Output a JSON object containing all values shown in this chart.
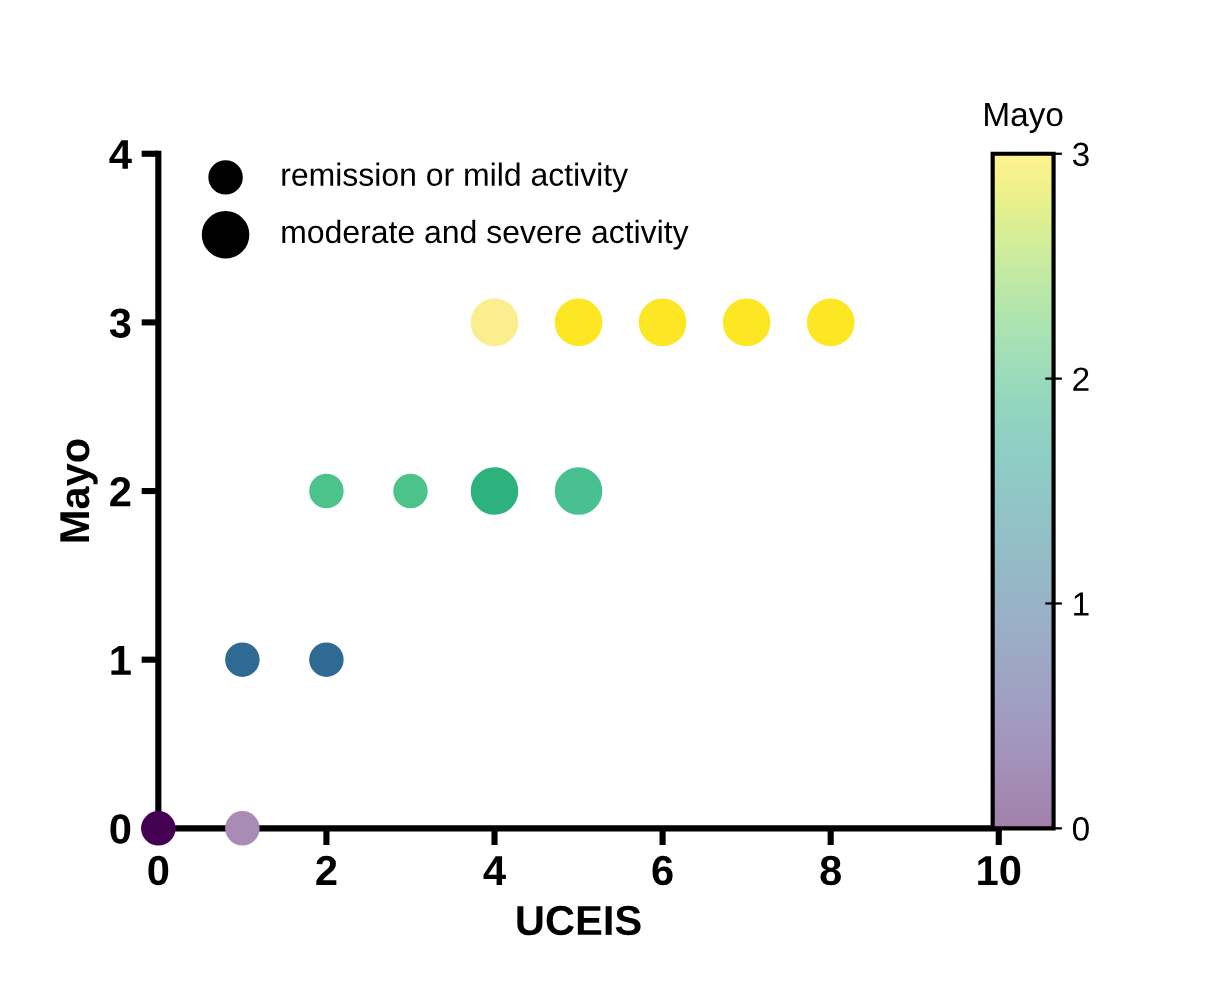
{
  "chart_data": {
    "type": "bubble",
    "xlabel": "UCEIS",
    "ylabel": "Mayo",
    "clabel": "Mayo",
    "xlim": [
      0,
      10
    ],
    "xticks": [
      0,
      2,
      4,
      6,
      8,
      10
    ],
    "ylim": [
      0,
      4
    ],
    "yticks": [
      0,
      1,
      2,
      3,
      4
    ],
    "clim": [
      0,
      3
    ],
    "cticks": [
      0,
      1,
      2,
      3
    ],
    "grid": false,
    "annotations": [
      "remission or mild activity",
      "moderate and severe activity"
    ],
    "series": [
      {
        "x": [
          0,
          1,
          1,
          2,
          2,
          3
        ],
        "values": [
          0,
          0,
          1,
          1,
          2,
          2
        ],
        "sizes": [
          0.5,
          0.5,
          0.5,
          0.5,
          0.5,
          0.5
        ],
        "colors": [
          "#440154",
          "#a98bb5",
          "#2f6a95",
          "#2f6a95",
          "#4cc38a",
          "#4cc38a"
        ]
      },
      {
        "x": [
          4,
          5,
          4,
          5,
          6,
          7,
          8
        ],
        "values": [
          2,
          2,
          3,
          3,
          3,
          3,
          3
        ],
        "sizes": [
          1,
          1,
          1,
          1,
          1,
          1,
          1
        ],
        "colors": [
          "#2db27d",
          "#48c08f",
          "#fbee8e",
          "#fde725",
          "#fde725",
          "#fde725",
          "#fde725"
        ]
      }
    ]
  }
}
